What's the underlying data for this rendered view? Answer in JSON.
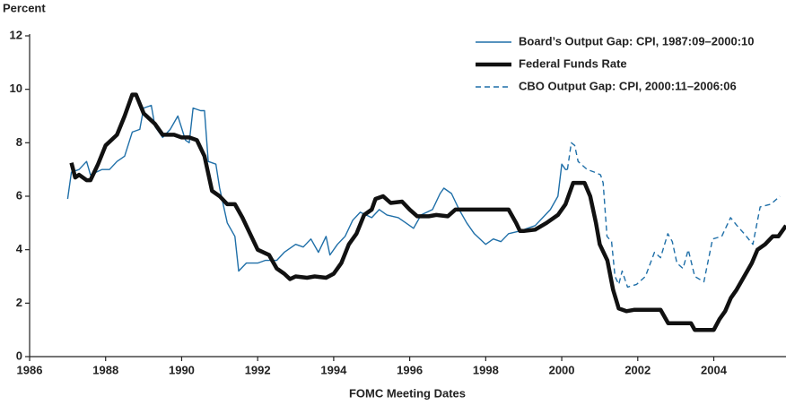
{
  "chart_data": {
    "type": "line",
    "y_label": "Percent",
    "x_label": "FOMC Meeting Dates",
    "xlim": [
      1986,
      2005.9
    ],
    "xticks": [
      1986,
      1988,
      1990,
      1992,
      1994,
      1996,
      1998,
      2000,
      2002,
      2004
    ],
    "ylim": [
      0,
      12
    ],
    "yticks": [
      0,
      2,
      4,
      6,
      8,
      10,
      12
    ],
    "legend": "top-right",
    "series": [
      {
        "name": "Board’s Output Gap: CPI, 1987:09–2000:10",
        "color": "#1f6fa8",
        "style": "solid",
        "x": [
          1987.0,
          1987.1,
          1987.3,
          1987.5,
          1987.6,
          1987.9,
          1988.1,
          1988.3,
          1988.5,
          1988.7,
          1988.9,
          1989.0,
          1989.2,
          1989.3,
          1989.5,
          1989.7,
          1989.9,
          1990.1,
          1990.2,
          1990.3,
          1990.5,
          1990.6,
          1990.7,
          1990.9,
          1991.0,
          1991.2,
          1991.4,
          1991.5,
          1991.7,
          1992.0,
          1992.2,
          1992.5,
          1992.7,
          1993.0,
          1993.2,
          1993.4,
          1993.6,
          1993.8,
          1993.9,
          1994.1,
          1994.3,
          1994.5,
          1994.7,
          1995.0,
          1995.2,
          1995.4,
          1995.7,
          1995.9,
          1996.1,
          1996.3,
          1996.6,
          1996.8,
          1996.9,
          1997.1,
          1997.3,
          1997.5,
          1997.7,
          1998.0,
          1998.2,
          1998.4,
          1998.6,
          1998.9,
          1999.1,
          1999.3,
          1999.5,
          1999.7,
          1999.9,
          2000.0,
          2000.1,
          2000.15
        ],
        "values": [
          5.9,
          6.9,
          7.0,
          7.3,
          6.8,
          7.0,
          7.0,
          7.3,
          7.5,
          8.4,
          8.5,
          9.3,
          9.4,
          8.6,
          8.2,
          8.5,
          9.0,
          8.1,
          8.0,
          9.3,
          9.2,
          9.2,
          7.3,
          7.2,
          6.3,
          5.0,
          4.5,
          3.2,
          3.5,
          3.5,
          3.6,
          3.6,
          3.9,
          4.2,
          4.1,
          4.4,
          3.9,
          4.5,
          3.8,
          4.2,
          4.5,
          5.1,
          5.4,
          5.2,
          5.5,
          5.3,
          5.2,
          5.0,
          4.8,
          5.3,
          5.5,
          6.1,
          6.3,
          6.1,
          5.5,
          5.0,
          4.6,
          4.2,
          4.4,
          4.3,
          4.6,
          4.7,
          4.8,
          4.9,
          5.2,
          5.5,
          6.0,
          7.2,
          7.0,
          7.0
        ]
      },
      {
        "name": "Federal Funds Rate",
        "color": "#111111",
        "style": "thick",
        "x": [
          1987.1,
          1987.2,
          1987.3,
          1987.5,
          1987.6,
          1987.8,
          1988.0,
          1988.3,
          1988.5,
          1988.7,
          1988.8,
          1989.0,
          1989.3,
          1989.5,
          1989.8,
          1990.0,
          1990.2,
          1990.4,
          1990.6,
          1990.8,
          1991.0,
          1991.2,
          1991.4,
          1991.6,
          1991.8,
          1992.0,
          1992.3,
          1992.5,
          1992.7,
          1992.85,
          1993.0,
          1993.3,
          1993.5,
          1993.8,
          1994.0,
          1994.2,
          1994.4,
          1994.6,
          1994.8,
          1995.0,
          1995.1,
          1995.3,
          1995.5,
          1995.8,
          1996.0,
          1996.2,
          1996.5,
          1996.7,
          1997.0,
          1997.2,
          1997.5,
          1998.0,
          1998.3,
          1998.6,
          1998.8,
          1998.9,
          1999.0,
          1999.3,
          1999.6,
          1999.9,
          2000.1,
          2000.3,
          2000.6,
          2000.75,
          2000.9,
          2001.0,
          2001.2,
          2001.35,
          2001.5,
          2001.7,
          2001.9,
          2002.6,
          2002.8,
          2003.4,
          2003.5,
          2004.0,
          2004.15,
          2004.3,
          2004.45,
          2004.6,
          2004.8,
          2005.0,
          2005.15,
          2005.35,
          2005.55,
          2005.7,
          2005.9
        ],
        "values": [
          7.25,
          6.7,
          6.8,
          6.6,
          6.6,
          7.2,
          7.9,
          8.3,
          9.0,
          9.8,
          9.8,
          9.1,
          8.7,
          8.3,
          8.3,
          8.2,
          8.2,
          8.1,
          7.5,
          6.2,
          6.0,
          5.7,
          5.7,
          5.2,
          4.6,
          4.0,
          3.8,
          3.3,
          3.1,
          2.9,
          3.0,
          2.95,
          3.0,
          2.95,
          3.1,
          3.5,
          4.2,
          4.6,
          5.3,
          5.5,
          5.9,
          6.0,
          5.75,
          5.8,
          5.5,
          5.25,
          5.25,
          5.3,
          5.25,
          5.5,
          5.5,
          5.5,
          5.5,
          5.5,
          5.0,
          4.7,
          4.7,
          4.75,
          5.0,
          5.3,
          5.7,
          6.5,
          6.5,
          6.0,
          5.0,
          4.2,
          3.6,
          2.5,
          1.8,
          1.7,
          1.75,
          1.75,
          1.25,
          1.25,
          1.0,
          1.0,
          1.4,
          1.7,
          2.2,
          2.5,
          3.0,
          3.5,
          4.0,
          4.2,
          4.5,
          4.5,
          4.9
        ]
      },
      {
        "name": "CBO Output Gap: CPI, 2000:11–2006:06",
        "color": "#1f6fa8",
        "style": "dashed",
        "x": [
          2000.15,
          2000.25,
          2000.34,
          2000.43,
          2000.67,
          2000.86,
          2001.02,
          2001.09,
          2001.19,
          2001.31,
          2001.4,
          2001.5,
          2001.59,
          2001.73,
          2001.97,
          2002.2,
          2002.44,
          2002.6,
          2002.79,
          2002.91,
          2003.03,
          2003.19,
          2003.33,
          2003.5,
          2003.74,
          2003.97,
          2004.21,
          2004.44,
          2004.61,
          2004.8,
          2005.03,
          2005.22,
          2005.5,
          2005.74
        ],
        "values": [
          7.0,
          8.0,
          7.9,
          7.3,
          7.0,
          6.9,
          6.8,
          6.5,
          4.5,
          4.3,
          3.0,
          2.7,
          3.2,
          2.6,
          2.7,
          3.0,
          3.9,
          3.7,
          4.6,
          4.3,
          3.5,
          3.3,
          4.0,
          3.0,
          2.8,
          4.4,
          4.5,
          5.2,
          4.9,
          4.6,
          4.2,
          5.6,
          5.7,
          6.0
        ]
      }
    ]
  }
}
